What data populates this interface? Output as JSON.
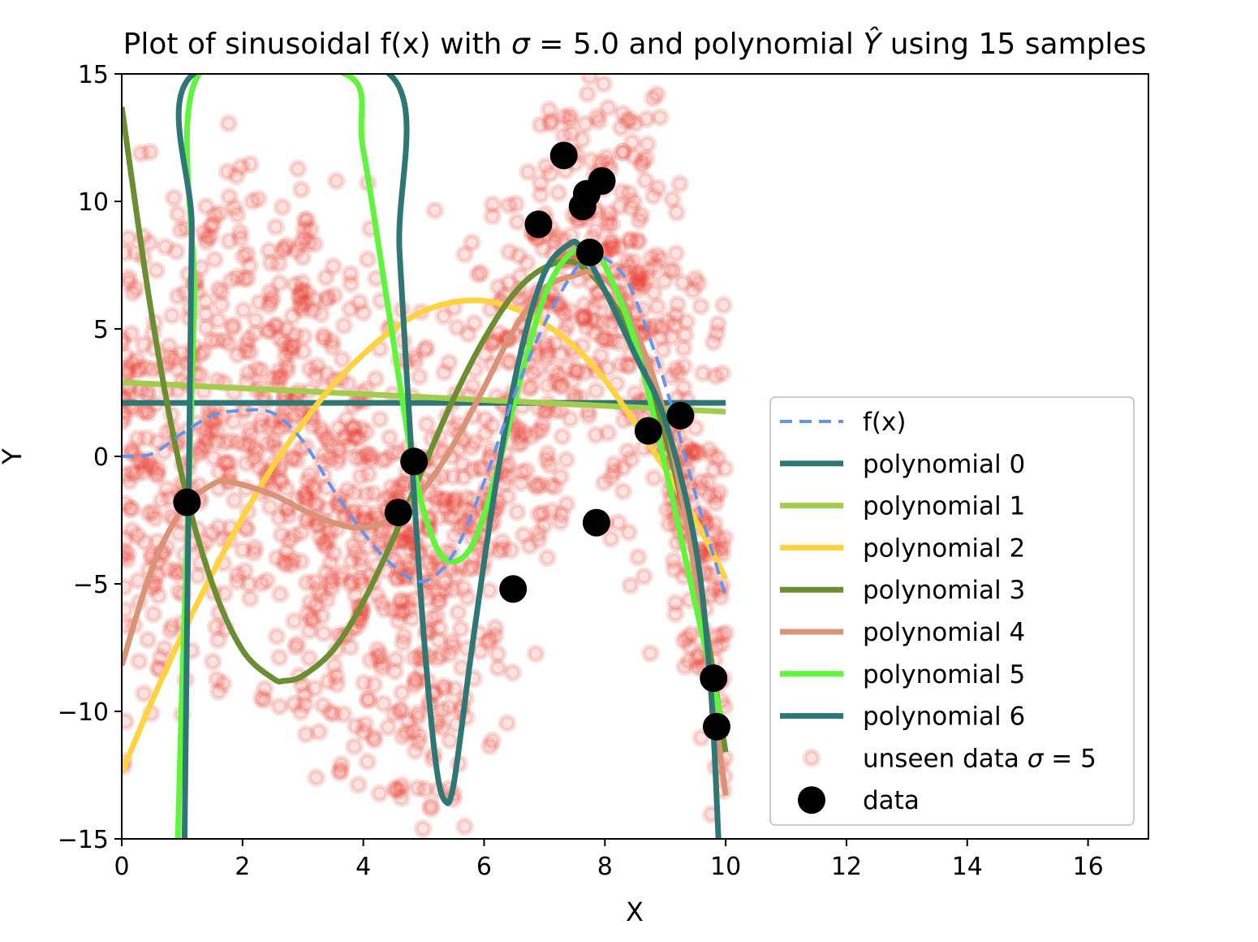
{
  "chart_data": {
    "type": "scatter",
    "title": "Plot of sinusoidal f(x) with σ = 5.0 and polynomial Ŷ using 15 samples",
    "title_parts": [
      "Plot of sinusoidal f(x) with ",
      "σ",
      " = 5.0 and polynomial ",
      "Ŷ",
      " using 15 samples"
    ],
    "xlabel": "X",
    "ylabel": "Y",
    "xlim": [
      0,
      17
    ],
    "ylim": [
      -15,
      15
    ],
    "xticks": [
      0,
      2,
      4,
      6,
      8,
      10,
      12,
      14,
      16
    ],
    "yticks": [
      -15,
      -10,
      -5,
      0,
      5,
      10,
      15
    ],
    "xtick_labels": [
      "0",
      "2",
      "4",
      "6",
      "8",
      "10",
      "12",
      "14",
      "16"
    ],
    "ytick_labels": [
      "−15",
      "−10",
      "−5",
      "0",
      "5",
      "10",
      "15"
    ],
    "grid": false,
    "legend_placement": "lower-right",
    "colors": {
      "fx": "#6495ed",
      "unseen": "#e8392b",
      "data": "#000000"
    },
    "series": [
      {
        "name": "f(x)",
        "kind": "dashed-line",
        "color": "#6495ed",
        "x": [
          0,
          0.5,
          1,
          1.5,
          2,
          2.5,
          3,
          3.5,
          4,
          4.5,
          5,
          5.5,
          6,
          6.5,
          7,
          7.5,
          7.8,
          8.2,
          8.5,
          9,
          9.5,
          10
        ],
        "y": [
          0,
          0.1,
          0.9,
          1.6,
          1.8,
          1.7,
          0.6,
          -1.3,
          -3.0,
          -4.3,
          -4.9,
          -3.8,
          -1.0,
          2.4,
          5.2,
          7.3,
          7.9,
          7.4,
          6.2,
          2.8,
          -1.5,
          -5.5
        ]
      },
      {
        "name": "polynomial 0",
        "kind": "line",
        "color": "#2e7775",
        "x": [
          0,
          10
        ],
        "y": [
          2.1,
          2.1
        ]
      },
      {
        "name": "polynomial 1",
        "kind": "line",
        "color": "#a4cc4c",
        "x": [
          0,
          10
        ],
        "y": [
          2.9,
          1.75
        ]
      },
      {
        "name": "polynomial 2",
        "kind": "line",
        "color": "#ffd23f",
        "x": [
          0,
          0.5,
          1,
          1.5,
          2,
          2.5,
          3,
          3.5,
          4,
          4.5,
          5,
          5.5,
          6,
          6.5,
          7,
          7.5,
          8,
          8.5,
          9,
          9.5,
          10
        ],
        "y": [
          -12.4,
          -9.6,
          -7.0,
          -4.6,
          -2.4,
          -0.4,
          1.3,
          2.8,
          4.0,
          5.0,
          5.7,
          6.05,
          6.1,
          5.8,
          5.2,
          4.3,
          3.0,
          1.3,
          -0.5,
          -2.5,
          -4.8
        ]
      },
      {
        "name": "polynomial 3",
        "kind": "line",
        "color": "#6b8e32",
        "x": [
          0,
          0.5,
          1,
          1.5,
          2,
          2.5,
          2.7,
          3,
          3.5,
          4,
          4.5,
          5,
          5.5,
          6,
          6.5,
          7,
          7.5,
          8,
          8.5,
          9,
          9.5,
          10
        ],
        "y": [
          13.7,
          5.5,
          -0.8,
          -5.0,
          -7.6,
          -8.7,
          -8.8,
          -8.6,
          -7.6,
          -5.7,
          -3.2,
          -0.4,
          2.3,
          4.6,
          6.4,
          7.4,
          7.6,
          6.5,
          4.3,
          0.8,
          -4.3,
          -11.6
        ]
      },
      {
        "name": "polynomial 4",
        "kind": "line",
        "color": "#d99377",
        "x": [
          0,
          0.5,
          1,
          1.5,
          1.8,
          2.5,
          3,
          3.5,
          4,
          4.5,
          5,
          5.5,
          6,
          6.5,
          7,
          7.5,
          7.8,
          8.2,
          8.5,
          9,
          9.5,
          10
        ],
        "y": [
          -8.2,
          -4.4,
          -2.1,
          -1.1,
          -1.0,
          -1.5,
          -2.1,
          -2.6,
          -2.8,
          -2.4,
          -1.3,
          0.5,
          2.7,
          5.0,
          6.6,
          7.1,
          7.2,
          6.5,
          5.0,
          1.5,
          -4.7,
          -13.3
        ]
      },
      {
        "name": "polynomial 5",
        "kind": "line",
        "color": "#5ff53b",
        "x": [
          0.93,
          1.0,
          1.1,
          1.2,
          1.28,
          3.7,
          4.0,
          4.4,
          4.8,
          5.1,
          5.4,
          5.8,
          6.2,
          6.6,
          7.0,
          7.4,
          7.8,
          8.0,
          8.5,
          9.0,
          9.5,
          10.0
        ],
        "y": [
          -15,
          -9.0,
          -2.0,
          6.0,
          15,
          15,
          12.0,
          6.0,
          0.0,
          -2.9,
          -4.1,
          -3.5,
          -0.7,
          3.0,
          6.3,
          7.9,
          8.2,
          7.5,
          4.5,
          -0.4,
          -5.8,
          -11.0
        ]
      },
      {
        "name": "polynomial 6",
        "kind": "line",
        "color": "#2e7775",
        "x": [
          1.04,
          1.07,
          1.1,
          1.13,
          1.16,
          1.19,
          4.43,
          4.6,
          4.8,
          5.0,
          5.2,
          5.35,
          5.5,
          5.8,
          6.2,
          6.6,
          7.0,
          7.4,
          7.6,
          8.0,
          8.5,
          9.0,
          9.5,
          9.75,
          9.88
        ],
        "y": [
          -15,
          -9.0,
          -3.0,
          3.0,
          9.0,
          15,
          15,
          8.0,
          0.0,
          -7.0,
          -12.0,
          -13.5,
          -12.8,
          -7.5,
          -1.0,
          4.0,
          7.2,
          8.3,
          8.2,
          6.5,
          4.0,
          1.4,
          -3.5,
          -9.0,
          -15
        ]
      },
      {
        "name": "unseen data σ = 5",
        "kind": "scatter-cloud",
        "color": "#e8392b",
        "x_range": [
          0,
          10
        ],
        "noise_sigma": 5,
        "count": 1600
      },
      {
        "name": "data",
        "kind": "scatter",
        "color": "#000000",
        "x": [
          1.08,
          4.58,
          4.84,
          6.48,
          6.9,
          7.32,
          7.63,
          7.7,
          7.75,
          7.86,
          7.95,
          8.72,
          9.25,
          9.8,
          9.85
        ],
        "y": [
          -1.8,
          -2.2,
          -0.2,
          -5.2,
          9.1,
          11.8,
          9.8,
          10.3,
          8.0,
          -2.6,
          10.8,
          1.0,
          1.6,
          -8.7,
          -10.6
        ]
      }
    ],
    "legend": [
      {
        "label": "f(x)",
        "kind": "dashed-line",
        "color": "#6495ed"
      },
      {
        "label": "polynomial 0",
        "kind": "line",
        "color": "#2e7775"
      },
      {
        "label": "polynomial 1",
        "kind": "line",
        "color": "#a4cc4c"
      },
      {
        "label": "polynomial 2",
        "kind": "line",
        "color": "#ffd23f"
      },
      {
        "label": "polynomial 3",
        "kind": "line",
        "color": "#6b8e32"
      },
      {
        "label": "polynomial 4",
        "kind": "line",
        "color": "#d99377"
      },
      {
        "label": "polynomial 5",
        "kind": "line",
        "color": "#5ff53b"
      },
      {
        "label": "polynomial 6",
        "kind": "line",
        "color": "#2e7775"
      },
      {
        "label": "unseen data σ = 5",
        "label_parts": [
          "unseen data ",
          "σ",
          " = 5"
        ],
        "kind": "ring",
        "color": "#e8392b"
      },
      {
        "label": "data",
        "kind": "dot",
        "color": "#000000"
      }
    ]
  }
}
